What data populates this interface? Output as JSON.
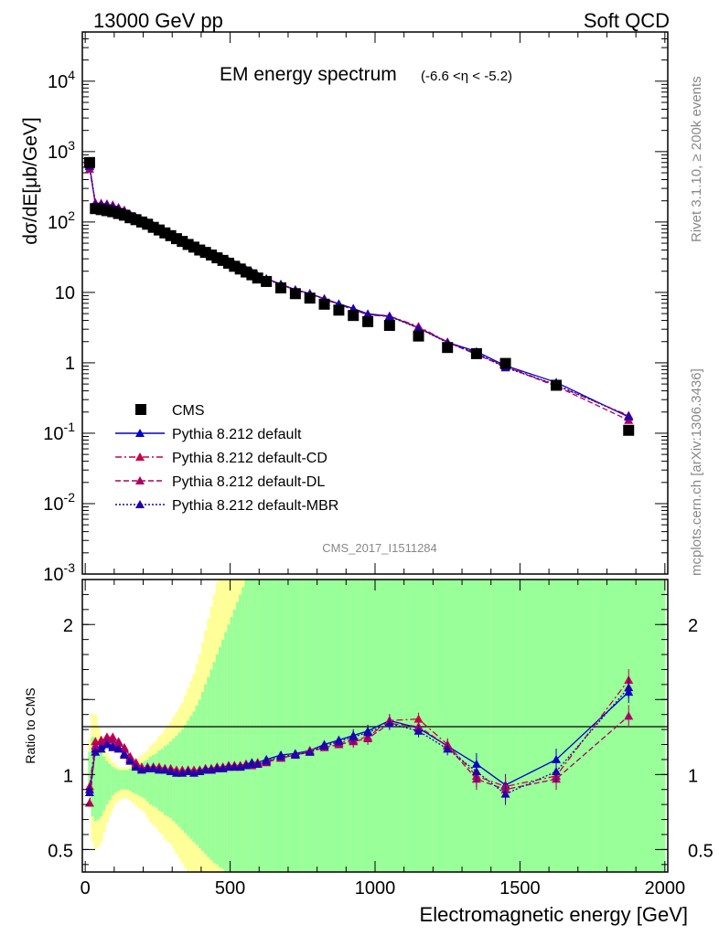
{
  "header": {
    "beam": "13000 GeV pp",
    "process": "Soft QCD"
  },
  "side_labels": {
    "rivet": "Rivet 3.1.10, ≥ 200k events",
    "mcplots": "mcplots.cern.ch [arXiv:1306.3436]"
  },
  "chart_data": {
    "type": "scatter",
    "title_main": "EM energy spectrum",
    "title_range": "(-6.6 <η < -5.2)",
    "analysis_id": "CMS_2017_I1511284",
    "ylabel": "dσ/dE[μb/GeV]",
    "ratio_ylabel": "Ratio to CMS",
    "xlabel": "Electromagnetic energy [GeV]",
    "xlim": [
      -10,
      2010
    ],
    "ylim_log": [
      0.001,
      50000
    ],
    "ratio_ylim": [
      0.35,
      2.3
    ],
    "log_y": true,
    "x_ticks": [
      "0",
      "500",
      "1000",
      "1500",
      "2000"
    ],
    "y_ticks_main": [
      "10-3",
      "10-2",
      "10-1",
      "1",
      "10",
      "102",
      "103",
      "104"
    ],
    "y_ticks_ratio": [
      "0.5",
      "1",
      "2"
    ],
    "legend_position": "bottom-left",
    "x": [
      15,
      35,
      55,
      75,
      95,
      115,
      135,
      155,
      175,
      195,
      215,
      235,
      255,
      275,
      295,
      315,
      335,
      355,
      375,
      395,
      415,
      435,
      455,
      475,
      495,
      515,
      535,
      555,
      575,
      595,
      625,
      675,
      725,
      775,
      825,
      875,
      925,
      975,
      1050,
      1150,
      1250,
      1350,
      1450,
      1625,
      1875
    ],
    "series": [
      {
        "name": "CMS",
        "color": "#000000",
        "marker": "square",
        "values": [
          700,
          155,
          150,
          145,
          140,
          132,
          125,
          115,
          108,
          100,
          93,
          84,
          77,
          70,
          64,
          58,
          53,
          48,
          44,
          40,
          37,
          34,
          31,
          28.5,
          26,
          23.5,
          21.5,
          19.5,
          17.8,
          16,
          14.3,
          11.6,
          9.6,
          8.3,
          6.8,
          5.6,
          4.7,
          3.85,
          3.4,
          2.4,
          1.65,
          1.35,
          0.98,
          0.48,
          0.11
        ]
      },
      {
        "name": "Pythia 8.212 default",
        "color": "#0000cc",
        "line": "solid",
        "marker": "triangle",
        "ratio": [
          0.88,
          1.17,
          1.19,
          1.21,
          1.19,
          1.18,
          1.14,
          1.1,
          1.06,
          1.04,
          1.05,
          1.05,
          1.04,
          1.04,
          1.03,
          1.02,
          1.02,
          1.03,
          1.02,
          1.03,
          1.04,
          1.04,
          1.05,
          1.05,
          1.06,
          1.06,
          1.06,
          1.07,
          1.08,
          1.08,
          1.1,
          1.13,
          1.14,
          1.16,
          1.2,
          1.23,
          1.26,
          1.29,
          1.36,
          1.31,
          1.19,
          1.07,
          0.93,
          1.1,
          1.55
        ]
      },
      {
        "name": "Pythia 8.212 default-CD",
        "color": "#cc0044",
        "line": "dashdot",
        "marker": "triangle",
        "ratio": [
          0.92,
          1.22,
          1.23,
          1.25,
          1.25,
          1.22,
          1.18,
          1.12,
          1.08,
          1.05,
          1.05,
          1.05,
          1.05,
          1.04,
          1.04,
          1.03,
          1.03,
          1.03,
          1.03,
          1.03,
          1.04,
          1.04,
          1.05,
          1.05,
          1.06,
          1.06,
          1.06,
          1.07,
          1.07,
          1.08,
          1.09,
          1.11,
          1.13,
          1.16,
          1.19,
          1.21,
          1.23,
          1.25,
          1.36,
          1.37,
          1.2,
          0.99,
          0.92,
          0.99,
          1.63
        ]
      },
      {
        "name": "Pythia 8.212 default-DL",
        "color": "#aa0066",
        "line": "dashed",
        "marker": "triangle",
        "ratio": [
          0.81,
          1.19,
          1.22,
          1.24,
          1.23,
          1.21,
          1.17,
          1.11,
          1.07,
          1.04,
          1.04,
          1.04,
          1.04,
          1.03,
          1.03,
          1.02,
          1.02,
          1.02,
          1.02,
          1.02,
          1.03,
          1.03,
          1.04,
          1.04,
          1.05,
          1.05,
          1.05,
          1.06,
          1.06,
          1.07,
          1.08,
          1.11,
          1.13,
          1.15,
          1.18,
          1.2,
          1.22,
          1.24,
          1.34,
          1.32,
          1.19,
          0.97,
          0.9,
          0.97,
          1.39
        ]
      },
      {
        "name": "Pythia 8.212 default-MBR",
        "color": "#2200aa",
        "line": "dotted",
        "marker": "triangle",
        "ratio": [
          0.9,
          1.15,
          1.17,
          1.2,
          1.18,
          1.17,
          1.13,
          1.09,
          1.05,
          1.03,
          1.04,
          1.04,
          1.03,
          1.03,
          1.02,
          1.01,
          1.01,
          1.02,
          1.01,
          1.02,
          1.03,
          1.03,
          1.04,
          1.04,
          1.05,
          1.05,
          1.05,
          1.06,
          1.07,
          1.07,
          1.09,
          1.12,
          1.13,
          1.15,
          1.19,
          1.22,
          1.25,
          1.28,
          1.34,
          1.29,
          1.17,
          1.02,
          0.87,
          1.02,
          1.58
        ]
      }
    ],
    "band_edges": [
      0,
      10,
      20,
      30,
      40,
      50,
      60,
      70,
      80,
      90,
      100,
      110,
      120,
      130,
      140,
      150,
      160,
      170,
      180,
      190,
      200,
      210,
      220,
      230,
      240,
      250,
      260,
      270,
      280,
      290,
      300,
      310,
      320,
      330,
      340,
      350,
      360,
      370,
      380,
      390,
      400,
      410,
      420,
      430,
      440,
      450,
      460,
      470,
      480,
      490,
      500,
      510,
      520,
      530,
      540,
      550,
      560,
      570,
      580,
      590,
      600,
      650,
      700,
      750,
      800,
      850,
      900,
      950,
      1000,
      1100,
      1200,
      1300,
      1400,
      1500,
      1750,
      2000
    ],
    "band_inner": [
      [
        1,
        1
      ],
      [
        1.15,
        0.86
      ],
      [
        1.25,
        0.72
      ],
      [
        1.25,
        0.69
      ],
      [
        1.2,
        0.7
      ],
      [
        1.16,
        0.72
      ],
      [
        1.12,
        0.76
      ],
      [
        1.09,
        0.8
      ],
      [
        1.07,
        0.83
      ],
      [
        1.05,
        0.86
      ],
      [
        1.04,
        0.88
      ],
      [
        1.03,
        0.89
      ],
      [
        1.03,
        0.9
      ],
      [
        1.03,
        0.9
      ],
      [
        1.03,
        0.9
      ],
      [
        1.04,
        0.89
      ],
      [
        1.05,
        0.88
      ],
      [
        1.06,
        0.87
      ],
      [
        1.07,
        0.86
      ],
      [
        1.08,
        0.85
      ],
      [
        1.09,
        0.84
      ],
      [
        1.1,
        0.82
      ],
      [
        1.12,
        0.8
      ],
      [
        1.13,
        0.79
      ],
      [
        1.14,
        0.78
      ],
      [
        1.16,
        0.76
      ],
      [
        1.17,
        0.75
      ],
      [
        1.19,
        0.73
      ],
      [
        1.2,
        0.72
      ],
      [
        1.22,
        0.71
      ],
      [
        1.24,
        0.69
      ],
      [
        1.26,
        0.67
      ],
      [
        1.28,
        0.65
      ],
      [
        1.3,
        0.63
      ],
      [
        1.33,
        0.61
      ],
      [
        1.36,
        0.59
      ],
      [
        1.39,
        0.57
      ],
      [
        1.42,
        0.55
      ],
      [
        1.46,
        0.53
      ],
      [
        1.5,
        0.51
      ],
      [
        1.55,
        0.49
      ],
      [
        1.6,
        0.47
      ],
      [
        1.65,
        0.45
      ],
      [
        1.7,
        0.43
      ],
      [
        1.75,
        0.41
      ],
      [
        1.8,
        0.4
      ],
      [
        1.85,
        0.38
      ],
      [
        1.9,
        0.37
      ],
      [
        1.95,
        0.35
      ],
      [
        2,
        0.35
      ],
      [
        2.05,
        0.35
      ],
      [
        2.1,
        0.35
      ],
      [
        2.15,
        0.35
      ],
      [
        2.2,
        0.35
      ],
      [
        2.25,
        0.35
      ],
      [
        2.3,
        0.35
      ],
      [
        2.3,
        0.35
      ],
      [
        2.3,
        0.35
      ],
      [
        2.3,
        0.35
      ],
      [
        2.3,
        0.35
      ],
      [
        2.3,
        0.35
      ],
      [
        2.3,
        0.35
      ],
      [
        2.3,
        0.35
      ],
      [
        2.3,
        0.35
      ],
      [
        2.3,
        0.35
      ],
      [
        2.3,
        0.35
      ],
      [
        2.3,
        0.35
      ],
      [
        2.3,
        0.35
      ],
      [
        2.3,
        0.35
      ],
      [
        2.3,
        0.35
      ],
      [
        2.3,
        0.35
      ],
      [
        2.3,
        0.35
      ],
      [
        2.3,
        0.35
      ],
      [
        2.3,
        0.35
      ],
      [
        2.3,
        0.35
      ]
    ]
  },
  "legend_items": [
    "CMS",
    "Pythia 8.212 default",
    "Pythia 8.212 default-CD",
    "Pythia 8.212 default-DL",
    "Pythia 8.212 default-MBR"
  ]
}
